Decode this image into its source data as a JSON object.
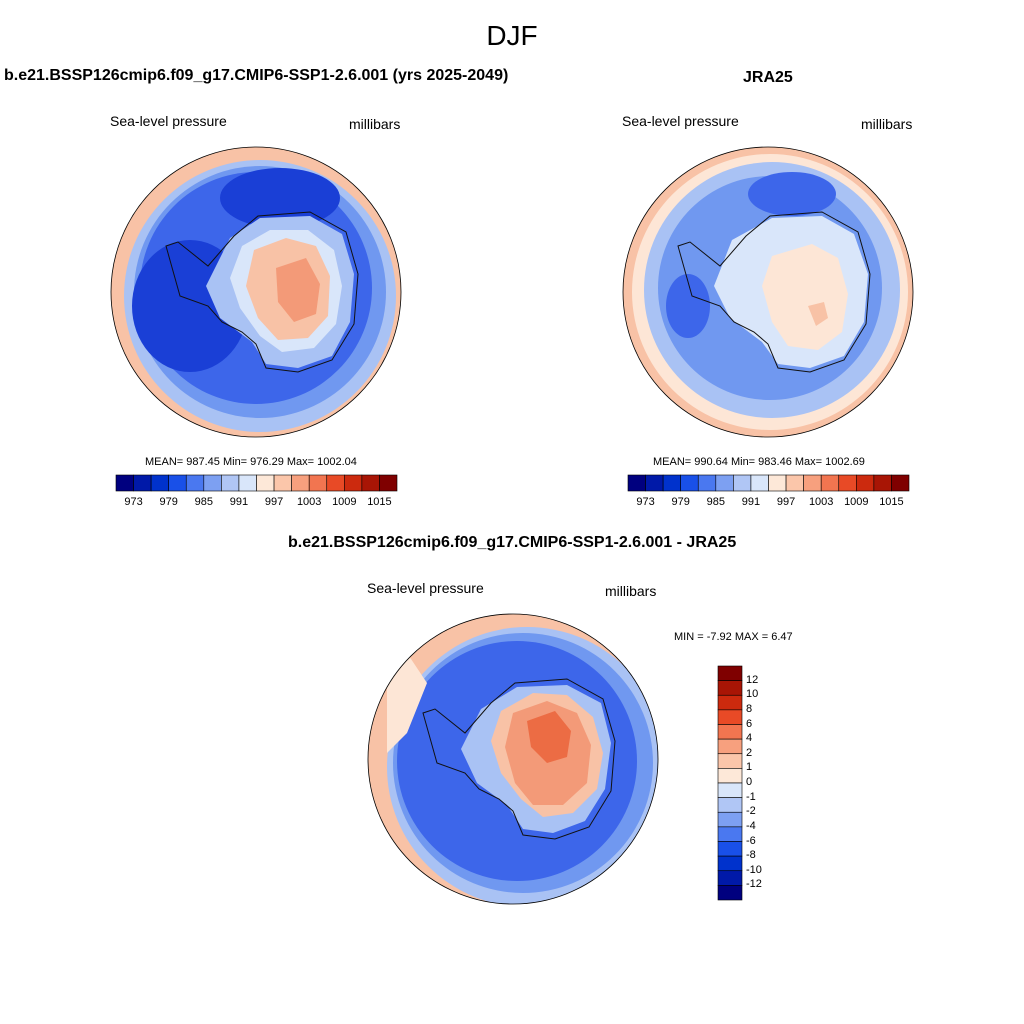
{
  "figure": {
    "title": "DJF"
  },
  "panels": [
    {
      "id": "model",
      "title": "b.e21.BSSP126cmip6.f09_g17.CMIP6-SSP1-2.6.001 (yrs 2025-2049)",
      "left_label": "Sea-level pressure",
      "right_label": "millibars",
      "stats": {
        "text": "MEAN= 987.45  Min= 976.29  Max= 1002.04",
        "mean": 987.45,
        "min": 976.29,
        "max": 1002.04
      }
    },
    {
      "id": "obs",
      "title": "JRA25",
      "left_label": "Sea-level pressure",
      "right_label": "millibars",
      "stats": {
        "text": "MEAN= 990.64  Min= 983.46  Max= 1002.69",
        "mean": 990.64,
        "min": 983.46,
        "max": 1002.69
      }
    },
    {
      "id": "diff",
      "title": "b.e21.BSSP126cmip6.f09_g17.CMIP6-SSP1-2.6.001 - JRA25",
      "left_label": "Sea-level pressure",
      "right_label": "millibars",
      "stats": {
        "text": "MIN =  -7.92 MAX =   6.47",
        "min": -7.92,
        "max": 6.47
      }
    }
  ],
  "colorbars": {
    "absolute": {
      "colors": [
        "#00007f",
        "#0019a8",
        "#0032cc",
        "#1950e8",
        "#4a78f0",
        "#7da0f2",
        "#b0c6f5",
        "#d9e6fa",
        "#fde8d8",
        "#fbc6aa",
        "#f7a07e",
        "#f27550",
        "#e84a26",
        "#cc2a0e",
        "#a81505",
        "#7f0000"
      ],
      "tick_labels": [
        "973",
        "979",
        "985",
        "991",
        "997",
        "1003",
        "1009",
        "1015"
      ]
    },
    "difference": {
      "colors": [
        "#00007f",
        "#0019a8",
        "#0032cc",
        "#1950e8",
        "#4a78f0",
        "#7da0f2",
        "#b0c6f5",
        "#d9e6fa",
        "#fde8d8",
        "#fbc6aa",
        "#f7a07e",
        "#f27550",
        "#e84a26",
        "#cc2a0e",
        "#a81505",
        "#7f0000"
      ],
      "tick_labels": [
        "12",
        "10",
        "8",
        "6",
        "4",
        "2",
        "1",
        "0",
        "-1",
        "-2",
        "-4",
        "-6",
        "-8",
        "-10",
        "-12"
      ]
    }
  },
  "map_colors": {
    "deep_blue": "#1a3fd6",
    "blue": "#3d66ea",
    "mid_blue": "#7098f0",
    "light_blue": "#a9c2f4",
    "pale_blue": "#d9e6fa",
    "pale_peach": "#fde6d6",
    "peach": "#f8c2a6",
    "salmon": "#f39a78",
    "orange_red": "#ec6c44",
    "red": "#e0421e"
  }
}
